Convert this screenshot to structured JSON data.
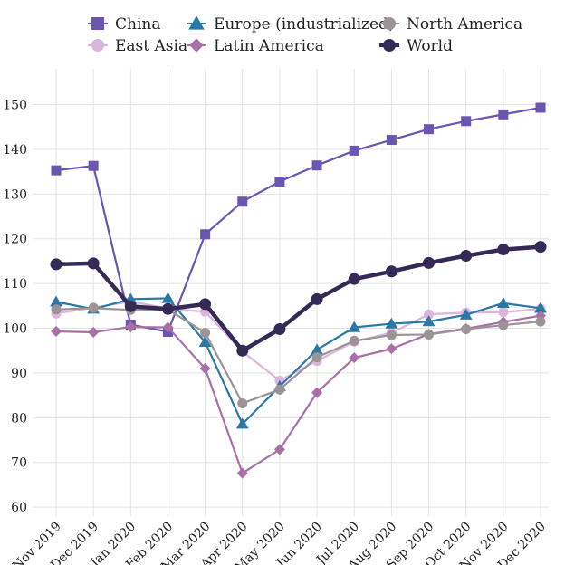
{
  "chart_data": {
    "type": "line",
    "title": "",
    "xlabel": "",
    "ylabel": "",
    "ylim": [
      58,
      158
    ],
    "yticks": [
      60,
      70,
      80,
      90,
      100,
      110,
      120,
      130,
      140,
      150
    ],
    "grid": true,
    "legend_position": "top",
    "categories": [
      "Nov 2019",
      "Dec 2019",
      "Jan 2020",
      "Feb 2020",
      "Mar 2020",
      "Apr 2020",
      "May 2020",
      "Jun 2020",
      "Jul 2020",
      "Aug 2020",
      "Sep 2020",
      "Oct 2020",
      "Nov 2020",
      "Dec 2020"
    ],
    "series": [
      {
        "name": "China",
        "color": "#6a55b0",
        "marker": "square",
        "values": [
          135.3,
          136.3,
          100.8,
          99.2,
          121.0,
          128.3,
          132.8,
          136.4,
          139.7,
          142.1,
          144.5,
          146.3,
          147.8,
          149.3
        ]
      },
      {
        "name": "East Asia",
        "color": "#dcb4dc",
        "marker": "circle",
        "values": [
          103.3,
          104.6,
          106.0,
          104.4,
          103.7,
          94.8,
          88.3,
          92.7,
          97.0,
          99.0,
          103.1,
          103.5,
          103.6,
          104.3
        ]
      },
      {
        "name": "Europe (industrialized)",
        "color": "#2a78a6",
        "marker": "triangle",
        "values": [
          105.9,
          104.3,
          106.5,
          106.7,
          96.9,
          78.6,
          87.0,
          95.2,
          100.2,
          101.0,
          101.5,
          103.0,
          105.6,
          104.5
        ]
      },
      {
        "name": "Latin America",
        "color": "#a871a6",
        "marker": "diamond",
        "values": [
          99.3,
          99.1,
          100.3,
          100.2,
          91.0,
          67.6,
          72.9,
          85.6,
          93.4,
          95.4,
          98.7,
          99.9,
          101.4,
          102.8
        ]
      },
      {
        "name": "North America",
        "color": "#9b9395",
        "marker": "circle",
        "values": [
          104.2,
          104.5,
          104.1,
          104.2,
          99.0,
          83.2,
          86.3,
          93.5,
          97.2,
          98.5,
          98.6,
          99.8,
          100.7,
          101.5
        ]
      },
      {
        "name": "World",
        "color": "#352a55",
        "marker": "circle",
        "values": [
          114.3,
          114.5,
          104.9,
          104.3,
          105.4,
          95.0,
          99.8,
          106.5,
          111.0,
          112.7,
          114.6,
          116.2,
          117.6,
          118.2
        ]
      }
    ]
  }
}
